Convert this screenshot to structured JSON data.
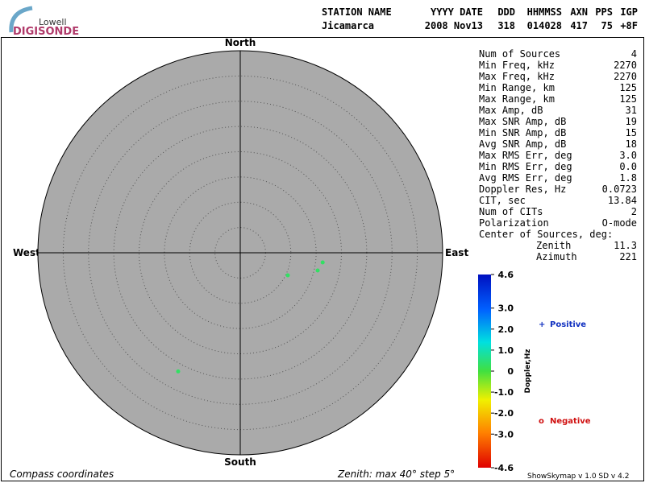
{
  "logo": {
    "top": "Lowell",
    "bottom": "DIGISONDE"
  },
  "header": {
    "labels": [
      "STATION NAME",
      "YYYY DATE",
      "DDD",
      "HHMMSS",
      "AXN",
      "PPS",
      "IGP"
    ],
    "values": [
      "Jicamarca",
      "2008 Nov13",
      "318",
      "014028",
      "417",
      "75",
      "+8F"
    ]
  },
  "stats": [
    [
      "Num of Sources",
      "4"
    ],
    [
      "Min Freq, kHz",
      "2270"
    ],
    [
      "Max Freq, kHz",
      "2270"
    ],
    [
      "Min Range, km",
      "125"
    ],
    [
      "Max Range, km",
      "125"
    ],
    [
      "Max Amp, dB",
      "31"
    ],
    [
      "Max SNR Amp, dB",
      "19"
    ],
    [
      "Min SNR Amp, dB",
      "15"
    ],
    [
      "Avg SNR Amp, dB",
      "18"
    ],
    [
      "Max RMS Err, deg",
      "3.0"
    ],
    [
      "Min RMS Err, deg",
      "0.0"
    ],
    [
      "Avg RMS Err, deg",
      "1.8"
    ],
    [
      "Doppler Res, Hz",
      "0.0723"
    ],
    [
      "CIT, sec",
      "13.84"
    ],
    [
      "Num of CITs",
      "2"
    ],
    [
      "Polarization",
      "O-mode"
    ]
  ],
  "center": {
    "title": "Center of Sources, deg:",
    "rows": [
      [
        "Zenith",
        "11.3"
      ],
      [
        "Azimuth",
        "221"
      ]
    ]
  },
  "skymap": {
    "compass": {
      "north": "North",
      "south": "South",
      "east": "East",
      "west": "West"
    },
    "rlim": [
      0,
      40
    ],
    "rticks": [
      5,
      10,
      15,
      20,
      25,
      30,
      35,
      40
    ],
    "sources": [
      {
        "zenith": 16.4,
        "azimuth": 96.7,
        "doppler": 0.3
      },
      {
        "zenith": 15.7,
        "azimuth": 102.9,
        "doppler": 0.3
      },
      {
        "zenith": 10.4,
        "azimuth": 115.4,
        "doppler": 0.3
      },
      {
        "zenith": 26.5,
        "azimuth": 207.6,
        "doppler": 0.3
      }
    ]
  },
  "colorbar": {
    "label": "Doppler,Hz",
    "range": [
      -4.6,
      4.6
    ],
    "ticks": [
      4.6,
      {
        "value": 3.0,
        "label": "3.0"
      },
      {
        "value": 2.0,
        "label": "2.0"
      },
      {
        "value": 1.0,
        "label": "1.0"
      },
      0,
      {
        "value": -1.0,
        "label": "-1.0"
      },
      {
        "value": -2.0,
        "label": "-2.0"
      },
      {
        "value": -3.0,
        "label": "-3.0"
      },
      -4.6
    ]
  },
  "legend": {
    "positive_symbol": "+",
    "positive": "Positive",
    "negative_symbol": "o",
    "negative": "Negative"
  },
  "footer": {
    "left": "Compass coordinates",
    "middle": "Zenith: max 40°  step 5°",
    "right": "ShowSkymap v 1.0  SD v 4.2"
  }
}
